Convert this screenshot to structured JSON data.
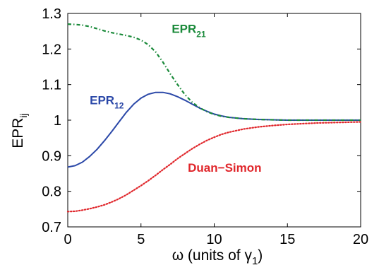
{
  "chart_data": {
    "type": "line",
    "xlabel": "ω (units of γ",
    "xlabel_sub": "1",
    "xlabel_close": ")",
    "ylabel": "EPR",
    "ylabel_sub": "ij",
    "xlim": [
      0,
      20
    ],
    "ylim": [
      0.7,
      1.3
    ],
    "xticks": [
      "0",
      "5",
      "10",
      "15",
      "20"
    ],
    "yticks": [
      "0.7",
      "0.8",
      "0.9",
      "1",
      "1.1",
      "1.2",
      "1.3"
    ],
    "grid": false,
    "series": [
      {
        "name": "EPR",
        "name_sub": "12",
        "color": "#2b48a8",
        "style": "solid",
        "x": [
          0,
          0.5,
          1,
          1.5,
          2,
          2.5,
          3,
          3.5,
          4,
          4.5,
          5,
          5.5,
          6,
          6.5,
          7,
          7.5,
          8,
          8.5,
          9,
          9.5,
          10,
          10.5,
          11,
          12,
          13,
          14,
          15,
          16,
          17,
          18,
          19,
          20
        ],
        "y": [
          0.868,
          0.872,
          0.882,
          0.898,
          0.918,
          0.942,
          0.968,
          0.995,
          1.022,
          1.045,
          1.062,
          1.073,
          1.078,
          1.078,
          1.074,
          1.066,
          1.056,
          1.045,
          1.034,
          1.025,
          1.017,
          1.012,
          1.008,
          1.004,
          1.002,
          1.001,
          1.0,
          1.0,
          1.0,
          1.0,
          1.0,
          1.0
        ]
      },
      {
        "name": "EPR",
        "name_sub": "21",
        "color": "#1a8a3a",
        "style": "dashdot",
        "x": [
          0,
          0.5,
          1,
          1.5,
          2,
          2.5,
          3,
          3.5,
          4,
          4.5,
          5,
          5.5,
          6,
          6.5,
          7,
          7.5,
          8,
          8.5,
          9,
          9.5,
          10,
          10.5,
          11,
          12,
          13,
          14,
          15,
          16,
          17,
          18,
          19,
          20
        ],
        "y": [
          1.27,
          1.269,
          1.267,
          1.263,
          1.257,
          1.251,
          1.246,
          1.242,
          1.238,
          1.233,
          1.225,
          1.212,
          1.192,
          1.163,
          1.13,
          1.1,
          1.072,
          1.05,
          1.035,
          1.024,
          1.016,
          1.011,
          1.008,
          1.004,
          1.002,
          1.001,
          1.0,
          1.0,
          1.0,
          1.0,
          1.0,
          1.0
        ]
      },
      {
        "name": "Duan−Simon",
        "name_sub": "",
        "color": "#e0262b",
        "style": "dotted",
        "x": [
          0,
          0.5,
          1,
          1.5,
          2,
          2.5,
          3,
          3.5,
          4,
          4.5,
          5,
          5.5,
          6,
          6.5,
          7,
          7.5,
          8,
          8.5,
          9,
          9.5,
          10,
          10.5,
          11,
          12,
          13,
          14,
          15,
          16,
          17,
          18,
          19,
          20
        ],
        "y": [
          0.743,
          0.744,
          0.747,
          0.751,
          0.756,
          0.762,
          0.77,
          0.779,
          0.79,
          0.803,
          0.816,
          0.83,
          0.845,
          0.861,
          0.876,
          0.892,
          0.906,
          0.92,
          0.932,
          0.943,
          0.952,
          0.96,
          0.966,
          0.975,
          0.981,
          0.985,
          0.988,
          0.99,
          0.992,
          0.993,
          0.994,
          0.995
        ]
      }
    ],
    "annotations": [
      {
        "text": "EPR",
        "sub": "21",
        "color": "#1a8a3a",
        "at_x": 7.1,
        "at_y": 1.245
      },
      {
        "text": "EPR",
        "sub": "12",
        "color": "#2b48a8",
        "at_x": 1.5,
        "at_y": 1.045
      },
      {
        "text": "Duan−Simon",
        "sub": "",
        "color": "#e0262b",
        "at_x": 8.2,
        "at_y": 0.855
      }
    ]
  }
}
